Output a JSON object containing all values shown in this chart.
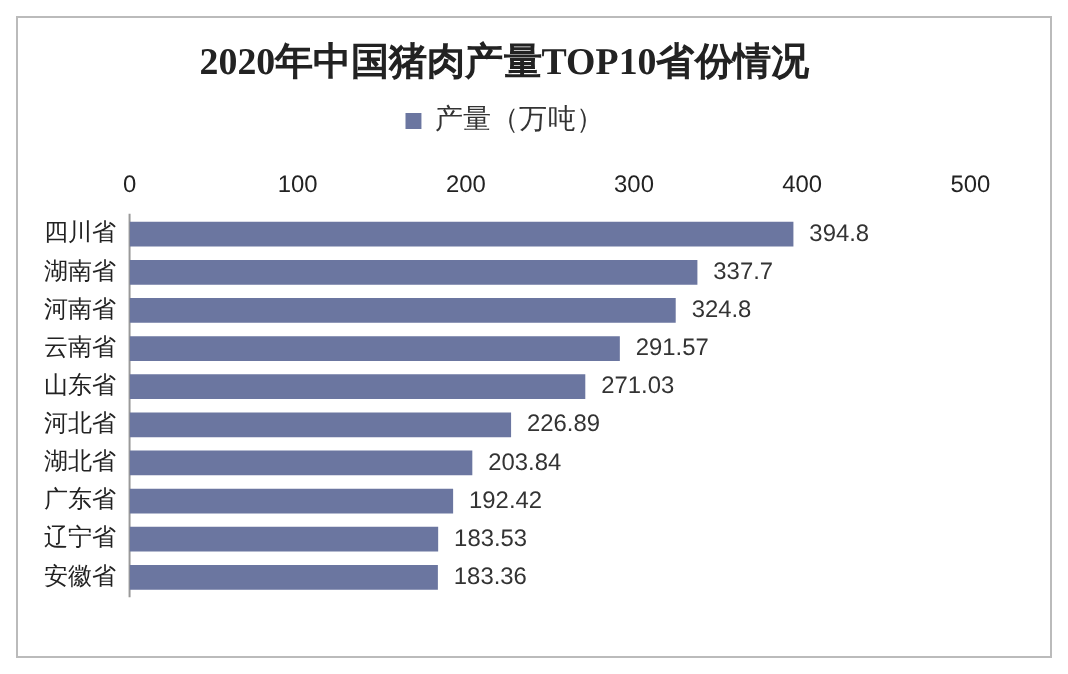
{
  "chart_data": {
    "type": "bar",
    "orientation": "horizontal",
    "title": "2020年中国猪肉产量TOP10省份情况",
    "categories": [
      "四川省",
      "湖南省",
      "河南省",
      "云南省",
      "山东省",
      "河北省",
      "湖北省",
      "广东省",
      "辽宁省",
      "安徽省"
    ],
    "series": [
      {
        "name": "产量（万吨）",
        "color": "#6b76a0",
        "values": [
          394.8,
          337.7,
          324.8,
          291.57,
          271.03,
          226.89,
          203.84,
          192.42,
          183.53,
          183.36
        ]
      }
    ],
    "value_labels": [
      "394.8",
      "337.7",
      "324.8",
      "291.57",
      "271.03",
      "226.89",
      "203.84",
      "192.42",
      "183.53",
      "183.36"
    ],
    "xlim": [
      0,
      500
    ],
    "xticks": [
      0,
      100,
      200,
      300,
      400,
      500
    ],
    "grid": false,
    "legend": "top"
  }
}
